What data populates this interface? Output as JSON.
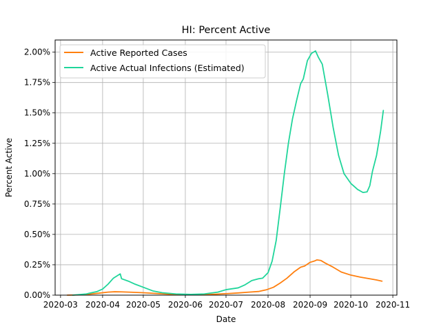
{
  "chart_data": {
    "type": "line",
    "title": "HI: Percent Active",
    "xlabel": "Date",
    "ylabel": "Percent Active",
    "x_range": [
      "2020-02-26",
      "2020-11-04"
    ],
    "ylim": [
      0,
      2.1
    ],
    "y_unit": "%",
    "grid": true,
    "legend": "top-left",
    "x_ticks": [
      "2020-03",
      "2020-04",
      "2020-05",
      "2020-06",
      "2020-07",
      "2020-08",
      "2020-09",
      "2020-10",
      "2020-11"
    ],
    "y_ticks": [
      {
        "value": 0,
        "label": "0.00%"
      },
      {
        "value": 0.25,
        "label": "0.25%"
      },
      {
        "value": 0.5,
        "label": "0.50%"
      },
      {
        "value": 0.75,
        "label": "0.75%"
      },
      {
        "value": 1.0,
        "label": "1.00%"
      },
      {
        "value": 1.25,
        "label": "1.25%"
      },
      {
        "value": 1.5,
        "label": "1.50%"
      },
      {
        "value": 1.75,
        "label": "1.75%"
      },
      {
        "value": 2.0,
        "label": "2.00%"
      }
    ],
    "series": [
      {
        "name": "Active Reported Cases",
        "color": "#ff7f0e",
        "points": [
          [
            "2020-03-06",
            0.0
          ],
          [
            "2020-03-15",
            0.002
          ],
          [
            "2020-03-22",
            0.008
          ],
          [
            "2020-03-29",
            0.016
          ],
          [
            "2020-04-05",
            0.025
          ],
          [
            "2020-04-10",
            0.028
          ],
          [
            "2020-04-15",
            0.027
          ],
          [
            "2020-04-22",
            0.024
          ],
          [
            "2020-05-01",
            0.02
          ],
          [
            "2020-05-10",
            0.014
          ],
          [
            "2020-05-20",
            0.008
          ],
          [
            "2020-06-01",
            0.005
          ],
          [
            "2020-06-10",
            0.004
          ],
          [
            "2020-06-20",
            0.006
          ],
          [
            "2020-07-01",
            0.012
          ],
          [
            "2020-07-10",
            0.018
          ],
          [
            "2020-07-18",
            0.025
          ],
          [
            "2020-07-25",
            0.03
          ],
          [
            "2020-07-31",
            0.045
          ],
          [
            "2020-08-05",
            0.065
          ],
          [
            "2020-08-10",
            0.1
          ],
          [
            "2020-08-15",
            0.14
          ],
          [
            "2020-08-20",
            0.19
          ],
          [
            "2020-08-25",
            0.23
          ],
          [
            "2020-08-28",
            0.24
          ],
          [
            "2020-09-01",
            0.27
          ],
          [
            "2020-09-04",
            0.28
          ],
          [
            "2020-09-06",
            0.29
          ],
          [
            "2020-09-09",
            0.285
          ],
          [
            "2020-09-12",
            0.265
          ],
          [
            "2020-09-18",
            0.23
          ],
          [
            "2020-09-24",
            0.19
          ],
          [
            "2020-10-01",
            0.165
          ],
          [
            "2020-10-08",
            0.148
          ],
          [
            "2020-10-15",
            0.135
          ],
          [
            "2020-10-20",
            0.125
          ],
          [
            "2020-10-24",
            0.115
          ]
        ]
      },
      {
        "name": "Active Actual Infections (Estimated)",
        "color": "#1fd59a",
        "points": [
          [
            "2020-03-10",
            0.0
          ],
          [
            "2020-03-20",
            0.01
          ],
          [
            "2020-03-28",
            0.03
          ],
          [
            "2020-04-01",
            0.05
          ],
          [
            "2020-04-05",
            0.09
          ],
          [
            "2020-04-09",
            0.14
          ],
          [
            "2020-04-14",
            0.175
          ],
          [
            "2020-04-15",
            0.135
          ],
          [
            "2020-04-20",
            0.115
          ],
          [
            "2020-04-25",
            0.09
          ],
          [
            "2020-05-01",
            0.065
          ],
          [
            "2020-05-08",
            0.035
          ],
          [
            "2020-05-15",
            0.02
          ],
          [
            "2020-05-25",
            0.01
          ],
          [
            "2020-06-05",
            0.006
          ],
          [
            "2020-06-15",
            0.01
          ],
          [
            "2020-06-25",
            0.025
          ],
          [
            "2020-07-01",
            0.045
          ],
          [
            "2020-07-10",
            0.06
          ],
          [
            "2020-07-15",
            0.085
          ],
          [
            "2020-07-20",
            0.12
          ],
          [
            "2020-07-25",
            0.135
          ],
          [
            "2020-07-28",
            0.14
          ],
          [
            "2020-08-01",
            0.185
          ],
          [
            "2020-08-04",
            0.28
          ],
          [
            "2020-08-07",
            0.45
          ],
          [
            "2020-08-10",
            0.72
          ],
          [
            "2020-08-13",
            1.0
          ],
          [
            "2020-08-16",
            1.25
          ],
          [
            "2020-08-19",
            1.45
          ],
          [
            "2020-08-22",
            1.6
          ],
          [
            "2020-08-25",
            1.74
          ],
          [
            "2020-08-27",
            1.78
          ],
          [
            "2020-08-30",
            1.93
          ],
          [
            "2020-09-02",
            1.99
          ],
          [
            "2020-09-05",
            2.01
          ],
          [
            "2020-09-07",
            1.96
          ],
          [
            "2020-09-10",
            1.9
          ],
          [
            "2020-09-14",
            1.65
          ],
          [
            "2020-09-18",
            1.38
          ],
          [
            "2020-09-22",
            1.15
          ],
          [
            "2020-09-26",
            1.0
          ],
          [
            "2020-10-01",
            0.92
          ],
          [
            "2020-10-06",
            0.87
          ],
          [
            "2020-10-10",
            0.845
          ],
          [
            "2020-10-13",
            0.85
          ],
          [
            "2020-10-15",
            0.9
          ],
          [
            "2020-10-17",
            1.02
          ],
          [
            "2020-10-20",
            1.15
          ],
          [
            "2020-10-23",
            1.35
          ],
          [
            "2020-10-25",
            1.52
          ]
        ]
      }
    ]
  }
}
